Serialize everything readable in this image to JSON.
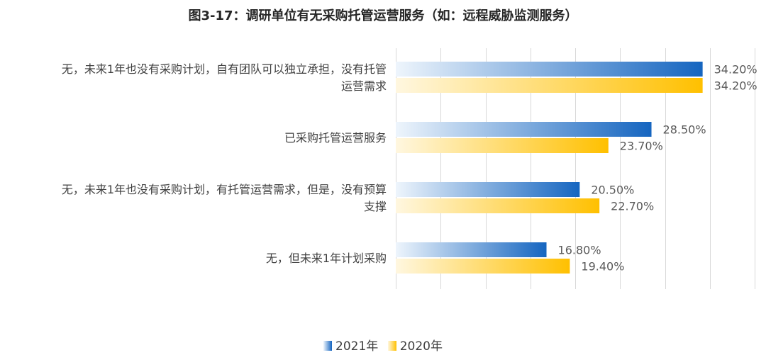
{
  "chart_data": {
    "type": "bar",
    "orientation": "horizontal",
    "title": "图3-17：调研单位有无采购托管运营服务（如：远程威胁监测服务）",
    "categories": [
      [
        "无，未来1年也没有采购计划，自有团队可以独立承担，没有托管",
        "运营需求"
      ],
      [
        "已采购托管运营服务"
      ],
      [
        "无，未来1年也没有采购计划，有托管运营需求，但是，没有预算",
        "支撑"
      ],
      [
        "无，但未来1年计划采购"
      ]
    ],
    "series": [
      {
        "name": "2021年",
        "values": [
          34.2,
          28.5,
          20.5,
          16.8
        ],
        "labels": [
          "34.20%",
          "28.50%",
          "20.50%",
          "16.80%"
        ],
        "color": "#1565C0",
        "color_light": "#EEF5FC"
      },
      {
        "name": "2020年",
        "values": [
          34.2,
          23.7,
          22.7,
          19.4
        ],
        "labels": [
          "34.20%",
          "23.70%",
          "22.70%",
          "19.40%"
        ],
        "color": "#FFC000",
        "color_light": "#FFF7E0"
      }
    ],
    "xlim": [
      0,
      40
    ],
    "grid": true,
    "legend_position": "bottom"
  }
}
